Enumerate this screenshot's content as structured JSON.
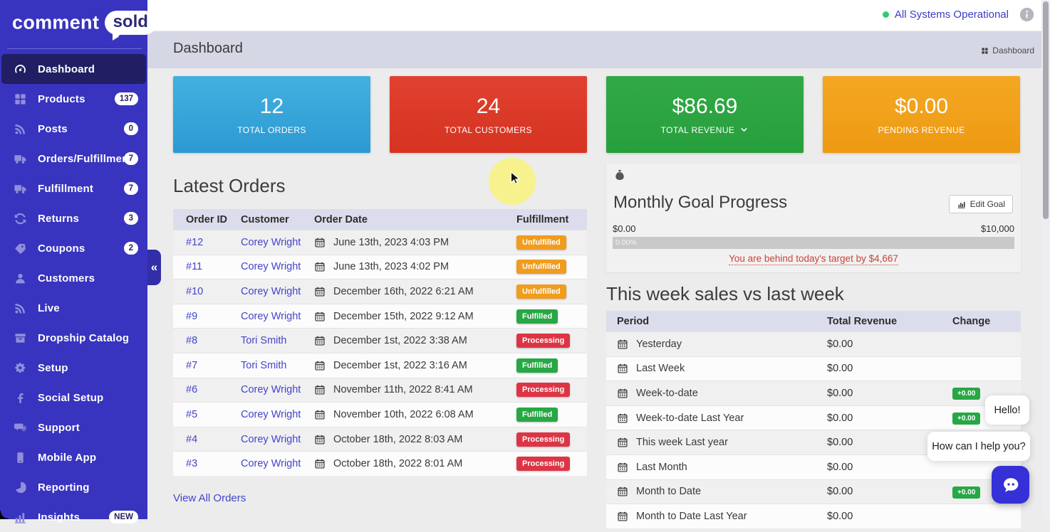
{
  "brand": {
    "logo_comment": "comment",
    "logo_sold": "sold"
  },
  "topbar": {
    "status_text": "All Systems Operational",
    "status_color": "#2ecc71"
  },
  "page_header": {
    "title": "Dashboard",
    "breadcrumb": "Dashboard"
  },
  "sidebar": {
    "collapse_glyph": "«",
    "items": [
      {
        "label": "Dashboard",
        "icon": "gauge-icon",
        "active": true
      },
      {
        "label": "Products",
        "icon": "grid-icon",
        "badge": "137"
      },
      {
        "label": "Posts",
        "icon": "rss-icon",
        "badge": "0"
      },
      {
        "label": "Orders/Fulfillment",
        "icon": "truck-icon",
        "badge": "7"
      },
      {
        "label": "Fulfillment",
        "icon": "truck-icon",
        "badge": "7"
      },
      {
        "label": "Returns",
        "icon": "sync-icon",
        "badge": "3"
      },
      {
        "label": "Coupons",
        "icon": "ticket-icon",
        "badge": "2"
      },
      {
        "label": "Customers",
        "icon": "user-icon"
      },
      {
        "label": "Live",
        "icon": "broadcast-icon"
      },
      {
        "label": "Dropship Catalog",
        "icon": "box-icon"
      },
      {
        "label": "Setup",
        "icon": "gears-icon"
      },
      {
        "label": "Social Setup",
        "icon": "facebook-icon"
      },
      {
        "label": "Support",
        "icon": "chat-icon"
      },
      {
        "label": "Mobile App",
        "icon": "phone-icon"
      },
      {
        "label": "Reporting",
        "icon": "pie-icon"
      },
      {
        "label": "Insights",
        "icon": "bar-chart-icon",
        "badge": "NEW"
      }
    ]
  },
  "stat_cards": [
    {
      "value": "12",
      "label": "TOTAL ORDERS",
      "color_top": "#43b0e0",
      "color_bottom": "#2c9ad2",
      "has_dropdown": false
    },
    {
      "value": "24",
      "label": "TOTAL CUSTOMERS",
      "color_top": "#e14130",
      "color_bottom": "#d63321",
      "has_dropdown": false
    },
    {
      "value": "$86.69",
      "label": "TOTAL REVENUE",
      "color_top": "#32a947",
      "color_bottom": "#279f3c",
      "has_dropdown": true
    },
    {
      "value": "$0.00",
      "label": "PENDING REVENUE",
      "color_top": "#f4a722",
      "color_bottom": "#ee9a13",
      "has_dropdown": false
    }
  ],
  "latest_orders": {
    "title": "Latest Orders",
    "columns": [
      "Order ID",
      "Customer",
      "Order Date",
      "Fulfillment"
    ],
    "rows": [
      {
        "id": "#12",
        "customer": "Corey Wright",
        "date": "June 13th, 2023 4:03 PM",
        "status": "Unfulfilled"
      },
      {
        "id": "#11",
        "customer": "Corey Wright",
        "date": "June 13th, 2023 4:02 PM",
        "status": "Unfulfilled"
      },
      {
        "id": "#10",
        "customer": "Corey Wright",
        "date": "December 16th, 2022 6:21 AM",
        "status": "Unfulfilled"
      },
      {
        "id": "#9",
        "customer": "Corey Wright",
        "date": "December 15th, 2022 9:12 AM",
        "status": "Fulfilled"
      },
      {
        "id": "#8",
        "customer": "Tori Smith",
        "date": "December 1st, 2022 3:38 AM",
        "status": "Processing"
      },
      {
        "id": "#7",
        "customer": "Tori Smith",
        "date": "December 1st, 2022 3:16 AM",
        "status": "Fulfilled"
      },
      {
        "id": "#6",
        "customer": "Corey Wright",
        "date": "November 11th, 2022 8:41 AM",
        "status": "Processing"
      },
      {
        "id": "#5",
        "customer": "Corey Wright",
        "date": "November 10th, 2022 6:08 AM",
        "status": "Fulfilled"
      },
      {
        "id": "#4",
        "customer": "Corey Wright",
        "date": "October 18th, 2022 8:03 AM",
        "status": "Processing"
      },
      {
        "id": "#3",
        "customer": "Corey Wright",
        "date": "October 18th, 2022 8:01 AM",
        "status": "Processing"
      }
    ],
    "status_colors": {
      "Unfulfilled": "#f09c1f",
      "Fulfilled": "#28a745",
      "Processing": "#dc3545"
    },
    "view_all": "View All Orders"
  },
  "goal": {
    "title": "Monthly Goal Progress",
    "edit_label": "Edit Goal",
    "range_min": "$0.00",
    "range_max": "$10,000",
    "progress_label": "0.00%",
    "progress_pct": 0,
    "warning": "You are behind today's target by $4,667"
  },
  "week_sales": {
    "title": "This week sales vs last week",
    "columns": [
      "Period",
      "Total Revenue",
      "Change"
    ],
    "change_badge_color": "#28a745",
    "rows": [
      {
        "period": "Yesterday",
        "revenue": "$0.00",
        "change": ""
      },
      {
        "period": "Last Week",
        "revenue": "$0.00",
        "change": ""
      },
      {
        "period": "Week-to-date",
        "revenue": "$0.00",
        "change": "+0.00"
      },
      {
        "period": "Week-to-date Last Year",
        "revenue": "$0.00",
        "change": "+0.00"
      },
      {
        "period": "This week Last year",
        "revenue": "$0.00",
        "change": ""
      },
      {
        "period": "Last Month",
        "revenue": "$0.00",
        "change": ""
      },
      {
        "period": "Month to Date",
        "revenue": "$0.00",
        "change": "+0.00"
      },
      {
        "period": "Month to Date Last Year",
        "revenue": "$0.00",
        "change": ""
      }
    ]
  },
  "chat": {
    "greeting": "Hello!",
    "question": "How can I help you?"
  }
}
